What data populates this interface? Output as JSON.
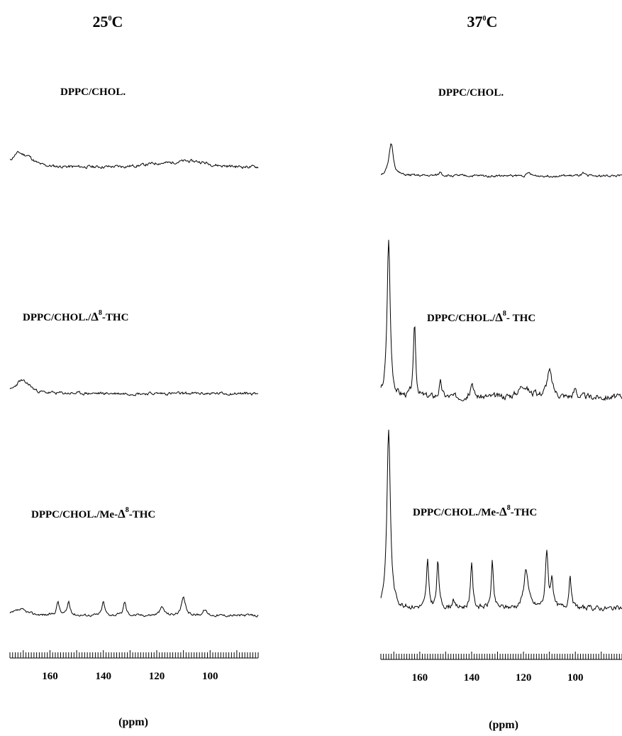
{
  "figure": {
    "panels": [
      {
        "title_main": "25",
        "title_sup": "0",
        "title_tail": "C",
        "unit_label": "(ppm)"
      },
      {
        "title_main": "37",
        "title_sup": "0",
        "title_tail": "C",
        "unit_label": "(ppm)"
      }
    ]
  },
  "chart_data": {
    "type": "line",
    "x_axis": {
      "unit": "(ppm)",
      "range": [
        175,
        82
      ],
      "reversed": true,
      "ticks": [
        160,
        140,
        120,
        100
      ]
    },
    "panels": [
      {
        "title": "25°C",
        "traces": [
          {
            "label_parts": [
              "DPPC/CHOL.",
              "",
              ""
            ],
            "noise": 0.12,
            "seed": 11,
            "peaks": [
              {
                "ppm": 172,
                "height": 0.55,
                "width": 3.0
              },
              {
                "ppm": 168,
                "height": 0.3,
                "width": 2.5
              },
              {
                "ppm": 120,
                "height": 0.12,
                "width": 6.0
              },
              {
                "ppm": 110,
                "height": 0.18,
                "width": 6.0
              },
              {
                "ppm": 104,
                "height": 0.14,
                "width": 5.0
              }
            ]
          },
          {
            "label_parts": [
              "DPPC/CHOL./",
              "Δ",
              "8",
              "-THC"
            ],
            "noise": 0.12,
            "seed": 23,
            "peaks": [
              {
                "ppm": 171,
                "height": 0.5,
                "width": 2.5
              },
              {
                "ppm": 168,
                "height": 0.2,
                "width": 2.0
              }
            ]
          },
          {
            "label_parts": [
              "DPPC/CHOL./Me-",
              "Δ",
              "8",
              "-THC"
            ],
            "noise": 0.1,
            "seed": 37,
            "peaks": [
              {
                "ppm": 171,
                "height": 0.25,
                "width": 3.0
              },
              {
                "ppm": 157,
                "height": 0.6,
                "width": 0.6
              },
              {
                "ppm": 153,
                "height": 0.6,
                "width": 0.6
              },
              {
                "ppm": 140,
                "height": 0.6,
                "width": 0.6
              },
              {
                "ppm": 132,
                "height": 0.6,
                "width": 0.6
              },
              {
                "ppm": 118,
                "height": 0.35,
                "width": 1.0
              },
              {
                "ppm": 110,
                "height": 0.75,
                "width": 0.9
              },
              {
                "ppm": 102,
                "height": 0.25,
                "width": 0.8
              }
            ]
          }
        ]
      },
      {
        "title": "37°C",
        "traces": [
          {
            "label_parts": [
              "DPPC/CHOL.",
              "",
              ""
            ],
            "noise": 0.08,
            "seed": 51,
            "peaks": [
              {
                "ppm": 171,
                "height": 1.2,
                "width": 1.0
              },
              {
                "ppm": 152,
                "height": 0.15,
                "width": 0.6
              },
              {
                "ppm": 118,
                "height": 0.12,
                "width": 0.6
              },
              {
                "ppm": 97,
                "height": 0.08,
                "width": 0.6
              }
            ]
          },
          {
            "label_parts": [
              "DPPC/CHOL./",
              "Δ",
              "8",
              "- THC"
            ],
            "noise": 0.1,
            "seed": 67,
            "peaks": [
              {
                "ppm": 172,
                "height": 2.8,
                "width": 0.7
              },
              {
                "ppm": 162,
                "height": 1.3,
                "width": 0.5
              },
              {
                "ppm": 152,
                "height": 0.25,
                "width": 0.6
              },
              {
                "ppm": 140,
                "height": 0.25,
                "width": 0.6
              },
              {
                "ppm": 120,
                "height": 0.22,
                "width": 2.0
              },
              {
                "ppm": 110,
                "height": 0.45,
                "width": 1.2
              },
              {
                "ppm": 100,
                "height": 0.15,
                "width": 0.6
              }
            ]
          },
          {
            "label_parts": [
              "DPPC/CHOL./Me-",
              "Δ",
              "8",
              "-THC"
            ],
            "noise": 0.09,
            "seed": 83,
            "peaks": [
              {
                "ppm": 172,
                "height": 3.6,
                "width": 0.8
              },
              {
                "ppm": 157,
                "height": 0.95,
                "width": 0.5
              },
              {
                "ppm": 153,
                "height": 0.95,
                "width": 0.5
              },
              {
                "ppm": 147,
                "height": 0.2,
                "width": 0.5
              },
              {
                "ppm": 140,
                "height": 0.95,
                "width": 0.5
              },
              {
                "ppm": 132,
                "height": 0.95,
                "width": 0.5
              },
              {
                "ppm": 119,
                "height": 0.8,
                "width": 1.0
              },
              {
                "ppm": 111,
                "height": 1.15,
                "width": 0.6
              },
              {
                "ppm": 109,
                "height": 0.6,
                "width": 0.5
              },
              {
                "ppm": 102,
                "height": 0.7,
                "width": 0.5
              }
            ]
          }
        ]
      }
    ]
  }
}
